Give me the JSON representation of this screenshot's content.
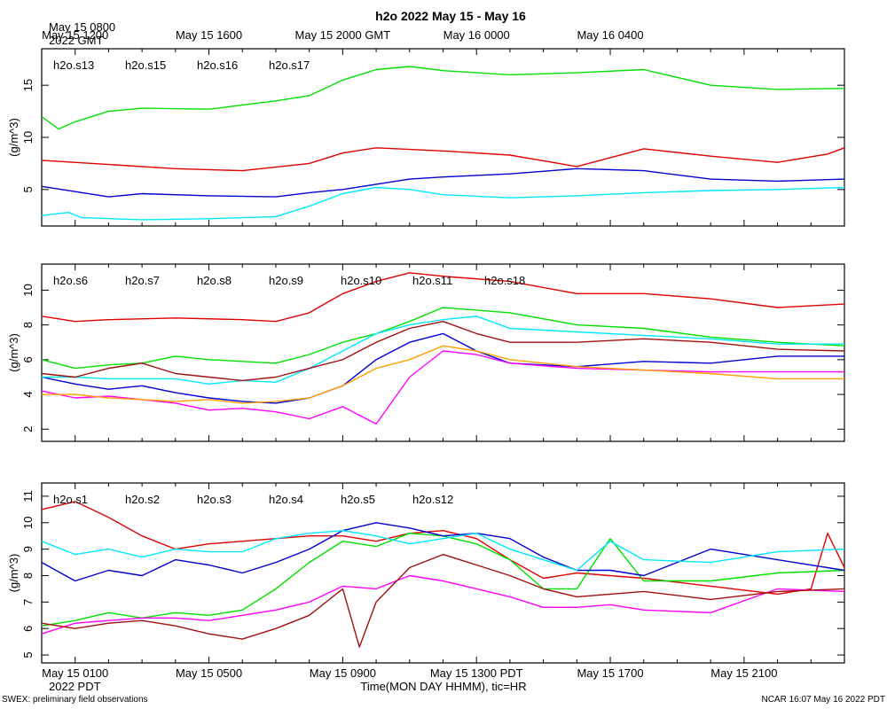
{
  "chart_data": [
    {
      "type": "line",
      "title": "h2o 2022 May 15 - May 16",
      "ylabel": "(g/m^3)",
      "ylim": [
        1.5,
        18.5
      ],
      "yticks": [
        5,
        10,
        15
      ],
      "x_hours_range": [
        0,
        24
      ],
      "top_time_labels": [
        {
          "hour": 1,
          "label": "May 15 1200"
        },
        {
          "hour": 5,
          "label": "May 15 1600"
        },
        {
          "hour": 9,
          "label": "May 15 2000 GMT"
        },
        {
          "hour": 13,
          "label": "May 16 0000"
        },
        {
          "hour": 17,
          "label": "May 16 0400"
        }
      ],
      "top_start_label": [
        "May 15 0800",
        "2022 GMT"
      ],
      "legend": [
        {
          "name": "h2o.s13",
          "color": "#e00000"
        },
        {
          "name": "h2o.s15",
          "color": "#00e000"
        },
        {
          "name": "h2o.s16",
          "color": "#0000d0"
        },
        {
          "name": "h2o.s17",
          "color": "#00e8ff"
        }
      ],
      "series": [
        {
          "name": "h2o.s13",
          "color": "#e00000",
          "x": [
            0,
            2,
            4,
            6,
            8,
            9,
            10,
            12,
            14,
            16,
            18,
            20,
            22,
            23.5,
            24
          ],
          "y": [
            7.8,
            7.4,
            7.0,
            6.8,
            7.5,
            8.5,
            9.0,
            8.7,
            8.3,
            7.2,
            8.9,
            8.2,
            7.6,
            8.4,
            9.0
          ]
        },
        {
          "name": "h2o.s15",
          "color": "#00e000",
          "x": [
            0,
            0.5,
            1,
            2,
            3,
            5,
            7,
            8,
            9,
            10,
            11,
            12,
            14,
            16,
            18,
            20,
            22,
            24
          ],
          "y": [
            12.0,
            10.8,
            11.5,
            12.5,
            12.8,
            12.7,
            13.5,
            14.0,
            15.5,
            16.5,
            16.8,
            16.4,
            16.0,
            16.2,
            16.5,
            15.0,
            14.6,
            14.7
          ]
        },
        {
          "name": "h2o.s16",
          "color": "#0000d0",
          "x": [
            0,
            1,
            2,
            3,
            5,
            7,
            8,
            9,
            11,
            12,
            14,
            16,
            18,
            20,
            22,
            24
          ],
          "y": [
            5.3,
            4.8,
            4.3,
            4.6,
            4.4,
            4.3,
            4.7,
            5.0,
            6.0,
            6.2,
            6.5,
            7.0,
            6.8,
            6.0,
            5.8,
            6.0
          ]
        },
        {
          "name": "h2o.s17",
          "color": "#00e8ff",
          "x": [
            0,
            0.8,
            1.2,
            3,
            5,
            7,
            8,
            9,
            10,
            11,
            12,
            14,
            16,
            18,
            20,
            22,
            24
          ],
          "y": [
            2.5,
            2.8,
            2.3,
            2.1,
            2.2,
            2.4,
            3.4,
            4.6,
            5.2,
            5.0,
            4.5,
            4.2,
            4.4,
            4.7,
            4.9,
            5.0,
            5.2
          ]
        }
      ]
    },
    {
      "type": "line",
      "ylabel": "(g/m^3)",
      "ylim": [
        1.3,
        11.5
      ],
      "yticks": [
        2,
        4,
        6,
        8,
        10
      ],
      "x_hours_range": [
        0,
        24
      ],
      "legend": [
        {
          "name": "h2o.s6",
          "color": "#e00000"
        },
        {
          "name": "h2o.s7",
          "color": "#00e000"
        },
        {
          "name": "h2o.s8",
          "color": "#0000d0"
        },
        {
          "name": "h2o.s9",
          "color": "#00e8ff"
        },
        {
          "name": "h2o.s10",
          "color": "#ff00ff"
        },
        {
          "name": "h2o.s11",
          "color": "#a01010"
        },
        {
          "name": "h2o.s18",
          "color": "#ffa000"
        }
      ],
      "series": [
        {
          "name": "h2o.s6",
          "color": "#e00000",
          "x": [
            0,
            1,
            2,
            4,
            6,
            7,
            8,
            9,
            10,
            11,
            12,
            14,
            16,
            18,
            20,
            22,
            24
          ],
          "y": [
            8.5,
            8.2,
            8.3,
            8.4,
            8.3,
            8.2,
            8.7,
            9.8,
            10.5,
            11.0,
            10.8,
            10.5,
            9.8,
            9.8,
            9.5,
            9.0,
            9.2
          ]
        },
        {
          "name": "h2o.s7",
          "color": "#00e000",
          "x": [
            0,
            1,
            2,
            3,
            4,
            5,
            6,
            7,
            8,
            9,
            10,
            11,
            12,
            14,
            16,
            18,
            20,
            22,
            24
          ],
          "y": [
            6.0,
            5.5,
            5.7,
            5.8,
            6.2,
            6.0,
            5.9,
            5.8,
            6.3,
            7.0,
            7.5,
            8.2,
            9.0,
            8.7,
            8.0,
            7.8,
            7.3,
            7.0,
            6.8
          ]
        },
        {
          "name": "h2o.s8",
          "color": "#0000d0",
          "x": [
            0,
            1,
            2,
            3,
            4,
            5,
            6,
            7,
            8,
            9,
            10,
            11,
            12,
            13,
            14,
            16,
            18,
            20,
            22,
            24
          ],
          "y": [
            5.0,
            4.6,
            4.3,
            4.5,
            4.1,
            3.8,
            3.6,
            3.5,
            3.8,
            4.5,
            6.0,
            7.0,
            7.5,
            6.5,
            5.8,
            5.6,
            5.9,
            5.8,
            6.2,
            6.2
          ]
        },
        {
          "name": "h2o.s9",
          "color": "#00e8ff",
          "x": [
            0,
            1,
            2,
            3,
            4,
            5,
            6,
            7,
            8,
            9,
            10,
            11,
            12,
            13,
            14,
            16,
            18,
            20,
            22,
            24
          ],
          "y": [
            5.0,
            5.0,
            4.9,
            4.9,
            4.9,
            4.6,
            4.8,
            4.7,
            5.5,
            6.5,
            7.5,
            8.0,
            8.3,
            8.5,
            7.8,
            7.6,
            7.4,
            7.2,
            6.9,
            6.9
          ]
        },
        {
          "name": "h2o.s10",
          "color": "#ff00ff",
          "x": [
            0,
            1,
            2,
            3,
            4,
            5,
            6,
            7,
            8,
            9,
            10,
            11,
            12,
            13,
            14,
            16,
            18,
            20,
            22,
            24
          ],
          "y": [
            4.2,
            3.8,
            3.9,
            3.7,
            3.5,
            3.1,
            3.2,
            3.0,
            2.6,
            3.3,
            2.3,
            5.0,
            6.5,
            6.3,
            5.8,
            5.5,
            5.4,
            5.3,
            5.3,
            5.3
          ]
        },
        {
          "name": "h2o.s11",
          "color": "#a01010",
          "x": [
            0,
            1,
            2,
            3,
            4,
            5,
            6,
            7,
            8,
            9,
            10,
            11,
            12,
            13,
            14,
            16,
            18,
            20,
            22,
            24
          ],
          "y": [
            5.2,
            5.0,
            5.5,
            5.8,
            5.2,
            5.0,
            4.8,
            5.0,
            5.5,
            6.0,
            7.0,
            7.8,
            8.2,
            7.5,
            7.0,
            7.0,
            7.2,
            7.0,
            6.6,
            6.5
          ]
        },
        {
          "name": "h2o.s18",
          "color": "#ffa000",
          "x": [
            0,
            1,
            2,
            3,
            4,
            5,
            6,
            7,
            8,
            9,
            10,
            11,
            12,
            13,
            14,
            16,
            18,
            20,
            22,
            24
          ],
          "y": [
            4.0,
            4.0,
            3.8,
            3.7,
            3.6,
            3.7,
            3.5,
            3.6,
            3.8,
            4.5,
            5.5,
            6.0,
            6.8,
            6.5,
            6.0,
            5.6,
            5.4,
            5.2,
            4.9,
            4.9
          ]
        }
      ]
    },
    {
      "type": "line",
      "ylabel": "(g/m^3)",
      "ylim": [
        4.7,
        11.5
      ],
      "yticks": [
        5,
        6,
        7,
        8,
        9,
        10,
        11
      ],
      "x_hours_range": [
        0,
        24
      ],
      "bottom_time_labels": [
        {
          "hour": 1,
          "label": "May 15 0100"
        },
        {
          "hour": 5,
          "label": "May 15 0500"
        },
        {
          "hour": 9,
          "label": "May 15 0900"
        },
        {
          "hour": 13,
          "label": "May 15 1300 PDT"
        },
        {
          "hour": 17,
          "label": "May 15 1700"
        },
        {
          "hour": 21,
          "label": "May 15 2100"
        }
      ],
      "bottom_start_label": "2022 PDT",
      "xlabel": "Time(MON DAY HHMM), tic=HR",
      "legend": [
        {
          "name": "h2o.s1",
          "color": "#e00000"
        },
        {
          "name": "h2o.s2",
          "color": "#00e000"
        },
        {
          "name": "h2o.s3",
          "color": "#0000d0"
        },
        {
          "name": "h2o.s4",
          "color": "#00e8ff"
        },
        {
          "name": "h2o.s5",
          "color": "#ff00ff"
        },
        {
          "name": "h2o.s12",
          "color": "#a01010"
        }
      ],
      "series": [
        {
          "name": "h2o.s1",
          "color": "#e00000",
          "x": [
            0,
            1,
            2,
            3,
            4,
            5,
            6,
            7,
            8,
            9,
            10,
            11,
            12,
            13,
            14,
            15,
            16,
            17,
            18,
            20,
            22,
            23,
            23.5,
            24
          ],
          "y": [
            10.5,
            10.8,
            10.2,
            9.5,
            9.0,
            9.2,
            9.3,
            9.4,
            9.5,
            9.5,
            9.3,
            9.6,
            9.7,
            9.4,
            8.6,
            7.9,
            8.1,
            8.0,
            7.9,
            7.6,
            7.3,
            7.5,
            9.6,
            8.3
          ]
        },
        {
          "name": "h2o.s2",
          "color": "#00e000",
          "x": [
            0,
            1,
            2,
            3,
            4,
            5,
            6,
            7,
            8,
            9,
            10,
            11,
            12,
            13,
            14,
            15,
            16,
            17,
            18,
            20,
            22,
            24
          ],
          "y": [
            6.1,
            6.3,
            6.6,
            6.4,
            6.6,
            6.5,
            6.7,
            7.5,
            8.5,
            9.3,
            9.1,
            9.6,
            9.5,
            9.2,
            8.6,
            7.5,
            7.5,
            9.4,
            7.8,
            7.8,
            8.1,
            8.2
          ]
        },
        {
          "name": "h2o.s3",
          "color": "#0000d0",
          "x": [
            0,
            1,
            2,
            3,
            4,
            5,
            6,
            7,
            8,
            9,
            10,
            11,
            12,
            13,
            14,
            15,
            16,
            17,
            18,
            20,
            22,
            24
          ],
          "y": [
            8.5,
            7.8,
            8.2,
            8.0,
            8.6,
            8.4,
            8.1,
            8.5,
            9.0,
            9.7,
            10.0,
            9.8,
            9.5,
            9.6,
            9.4,
            8.7,
            8.2,
            8.2,
            8.0,
            9.0,
            8.6,
            8.2
          ]
        },
        {
          "name": "h2o.s4",
          "color": "#00e8ff",
          "x": [
            0,
            1,
            2,
            3,
            4,
            5,
            6,
            7,
            8,
            9,
            10,
            11,
            12,
            13,
            14,
            15,
            16,
            17,
            18,
            20,
            22,
            24
          ],
          "y": [
            9.3,
            8.8,
            9.0,
            8.7,
            9.0,
            8.9,
            8.9,
            9.4,
            9.6,
            9.7,
            9.5,
            9.2,
            9.4,
            9.6,
            9.0,
            8.6,
            8.2,
            9.3,
            8.6,
            8.5,
            8.9,
            9.0
          ]
        },
        {
          "name": "h2o.s5",
          "color": "#ff00ff",
          "x": [
            0,
            1,
            2,
            3,
            4,
            5,
            6,
            7,
            8,
            9,
            10,
            11,
            12,
            13,
            14,
            15,
            16,
            17,
            18,
            20,
            22,
            24
          ],
          "y": [
            5.8,
            6.2,
            6.3,
            6.4,
            6.4,
            6.3,
            6.5,
            6.7,
            7.0,
            7.6,
            7.5,
            8.0,
            7.8,
            7.5,
            7.2,
            6.8,
            6.8,
            6.9,
            6.7,
            6.6,
            7.5,
            7.4
          ]
        },
        {
          "name": "h2o.s12",
          "color": "#a01010",
          "x": [
            0,
            1,
            2,
            3,
            4,
            5,
            6,
            7,
            8,
            9,
            9.5,
            10,
            11,
            12,
            13,
            14,
            15,
            16,
            17,
            18,
            20,
            22,
            24
          ],
          "y": [
            6.2,
            6.0,
            6.2,
            6.3,
            6.1,
            5.8,
            5.6,
            6.0,
            6.5,
            7.5,
            5.3,
            7.0,
            8.3,
            8.8,
            8.4,
            8.0,
            7.5,
            7.2,
            7.3,
            7.4,
            7.1,
            7.4,
            7.5
          ]
        }
      ]
    }
  ],
  "footer": {
    "left": "SWEX: preliminary field observations",
    "right": "NCAR 16:07 May 16 2022 PDT"
  }
}
